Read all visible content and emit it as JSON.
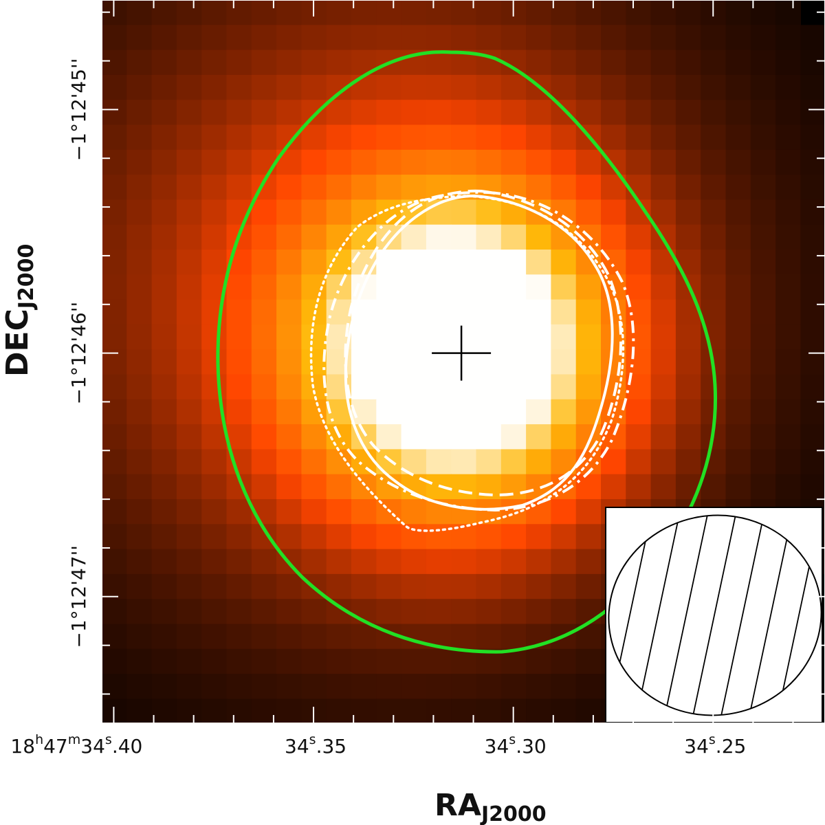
{
  "chart_data": {
    "type": "heatmap",
    "colormap": "heat (black-red-orange-white)",
    "xlabel": {
      "main": "RA",
      "sub": "J2000"
    },
    "ylabel": {
      "main": "DEC",
      "sub": "J2000"
    },
    "x_ticks": [
      {
        "h": "18",
        "m": "47",
        "s": "34",
        "frac": "40",
        "value_s": 34.4
      },
      {
        "s": "34",
        "frac": "35",
        "value_s": 34.35
      },
      {
        "s": "34",
        "frac": "30",
        "value_s": 34.3
      },
      {
        "s": "34",
        "frac": "25",
        "value_s": 34.25
      }
    ],
    "y_ticks": [
      {
        "label": "−1°12'45''",
        "value_arcsec": -45
      },
      {
        "label": "−1°12'46''",
        "value_arcsec": -46
      },
      {
        "label": "−1°12'47''",
        "value_arcsec": -47
      }
    ],
    "xlim_s": [
      34.403,
      34.222
    ],
    "ylim_arcsec": [
      -44.55,
      -47.52
    ],
    "peak": {
      "ra_s": 34.313,
      "dec_arcsec": -46.0
    },
    "intensity_peak": {
      "ra_s": 34.313,
      "dec_arcsec": -46.0,
      "sigma_x_s": 0.028,
      "sigma_y_arcsec": 0.48
    },
    "contours": [
      {
        "style": "solid",
        "color": "#22e024"
      },
      {
        "style": "solid",
        "color": "#ffffff"
      },
      {
        "style": "dashed",
        "color": "#ffffff"
      },
      {
        "style": "dashdot",
        "color": "#ffffff"
      },
      {
        "style": "dotted",
        "color": "#ffffff"
      }
    ],
    "beam_inset": true,
    "grid": false
  }
}
